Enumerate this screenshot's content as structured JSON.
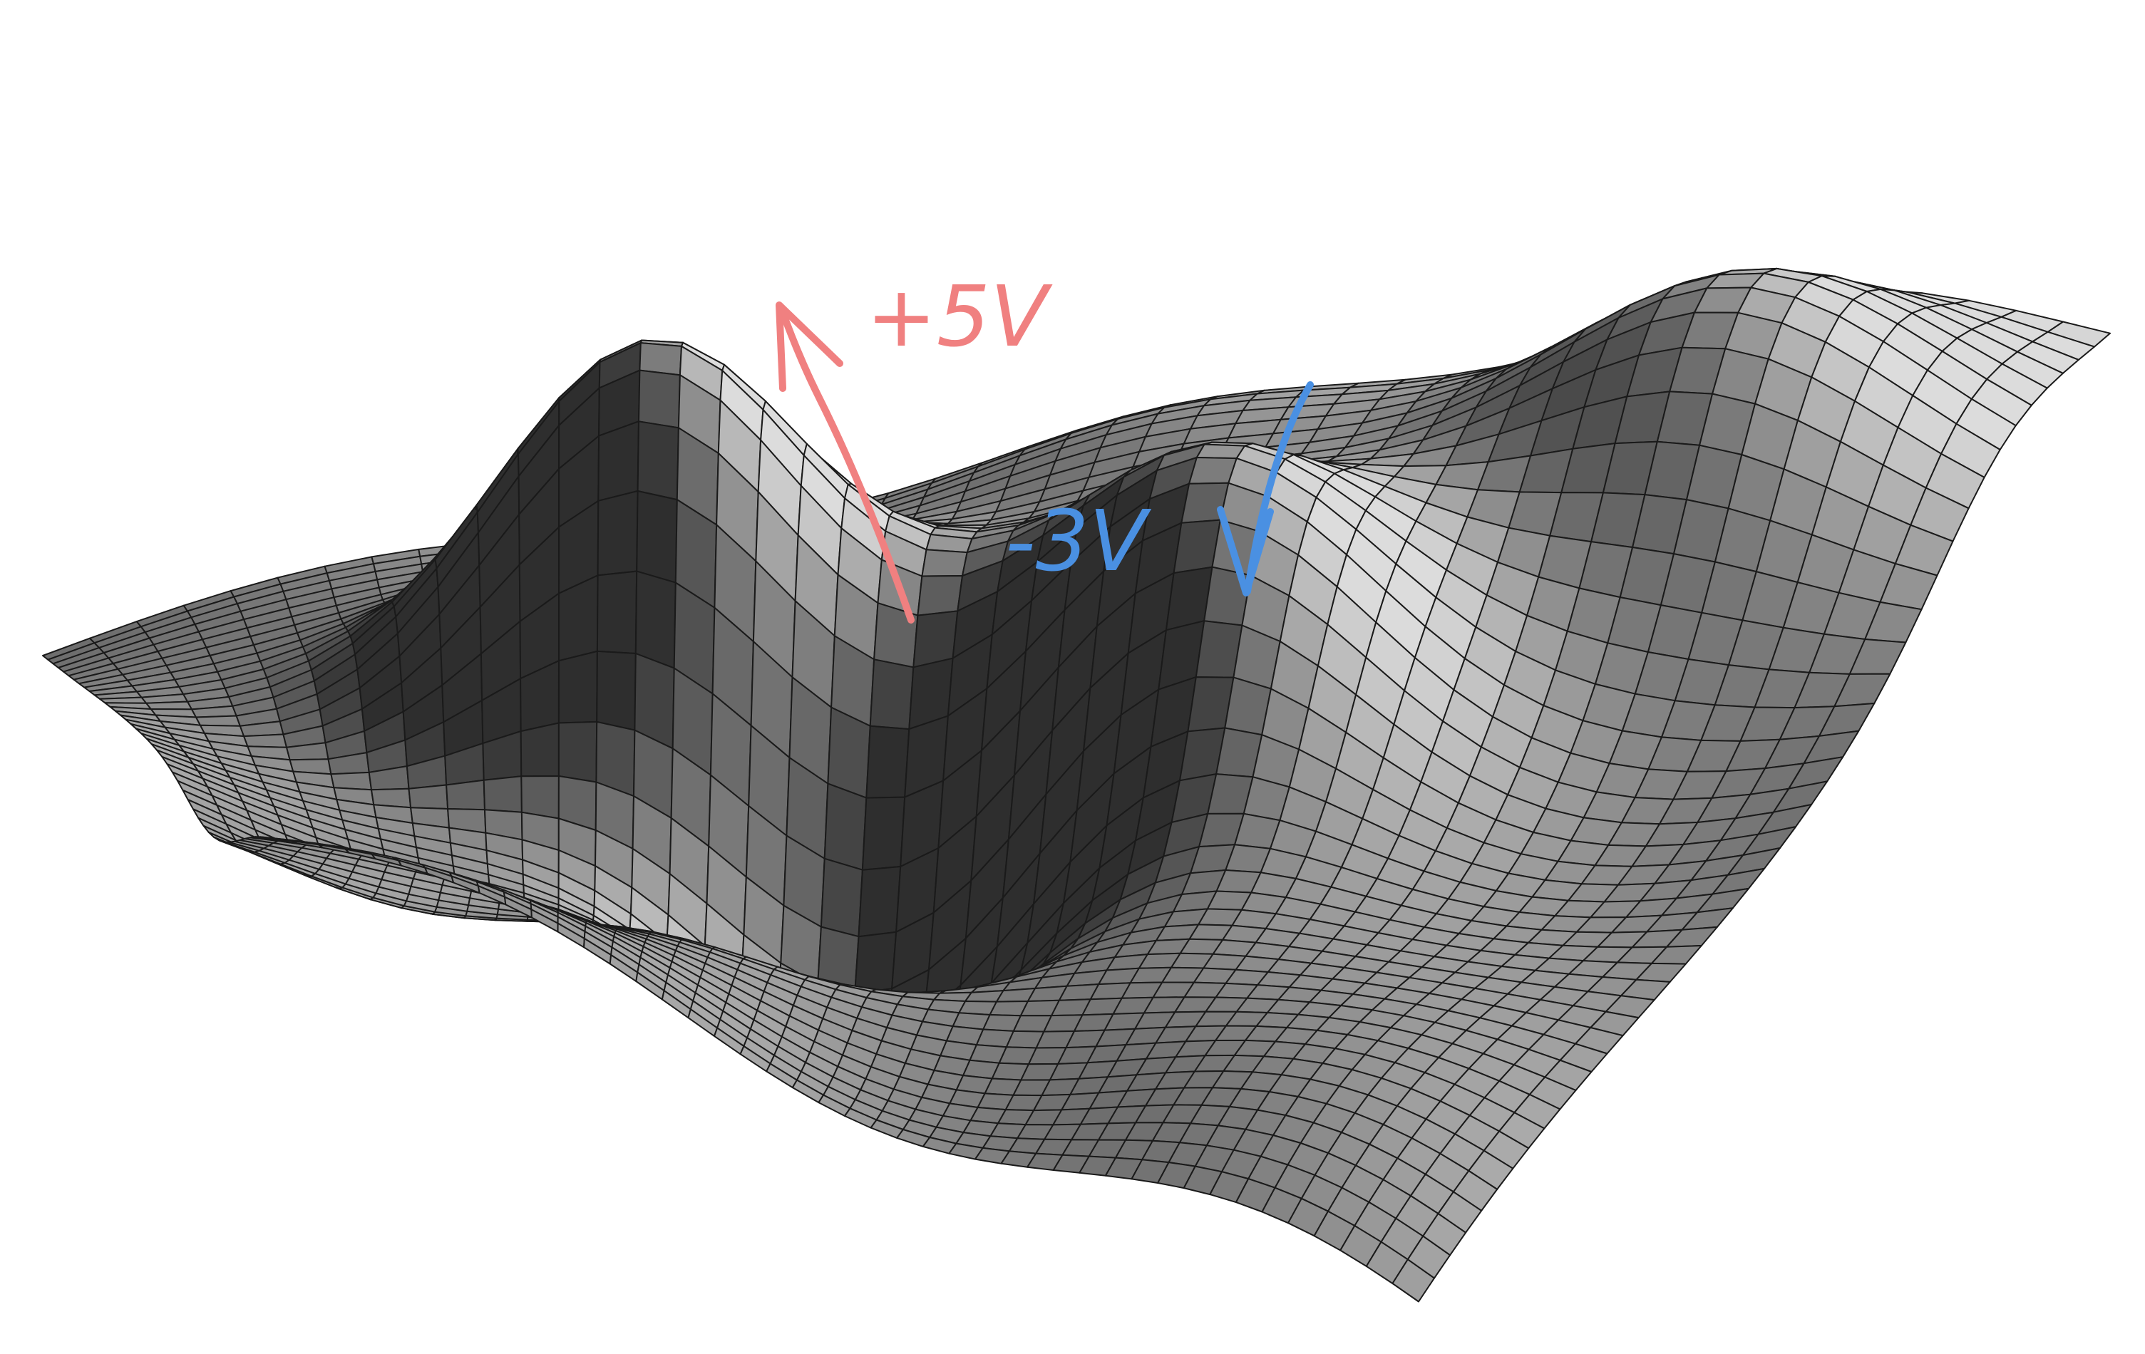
{
  "diagram": {
    "surface": {
      "description_kind": "wireframe-potential-surface",
      "color_light": "#dcdcdc",
      "color_dark": "#2e2e2e",
      "mesh_line_color": "#1a1a1a"
    },
    "annotations": [
      {
        "id": "positive",
        "label": "+5V",
        "color": "#f08080",
        "arrow_direction": "up"
      },
      {
        "id": "negative",
        "label": "-3V",
        "color": "#4a90e2",
        "arrow_direction": "down"
      }
    ]
  }
}
